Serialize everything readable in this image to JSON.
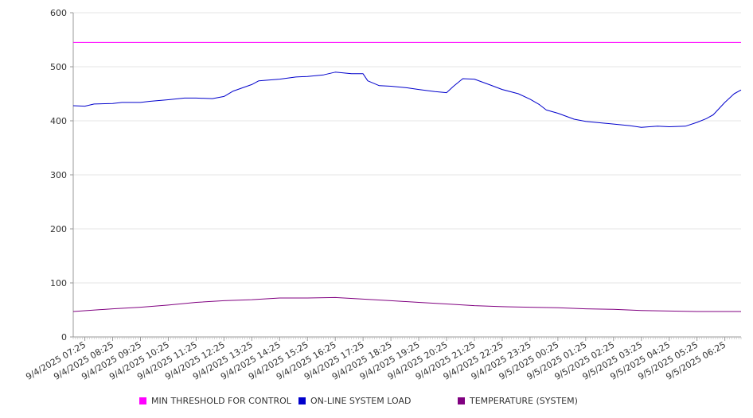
{
  "chart_data": {
    "type": "line",
    "title": "",
    "xlabel": "",
    "ylabel": "",
    "ylim": [
      0,
      600
    ],
    "yticks": [
      0,
      100,
      200,
      300,
      400,
      500,
      600
    ],
    "grid": true,
    "legend_position": "bottom",
    "x_tick_labels": [
      "9/4/2025 07:25",
      "9/4/2025 08:25",
      "9/4/2025 09:25",
      "9/4/2025 10:25",
      "9/4/2025 11:25",
      "9/4/2025 12:25",
      "9/4/2025 13:25",
      "9/4/2025 14:25",
      "9/4/2025 15:25",
      "9/4/2025 16:25",
      "9/4/2025 17:25",
      "9/4/2025 18:25",
      "9/4/2025 19:25",
      "9/4/2025 20:25",
      "9/4/2025 21:25",
      "9/4/2025 22:25",
      "9/4/2025 23:25",
      "9/5/2025 00:25",
      "9/5/2025 01:25",
      "9/5/2025 02:25",
      "9/5/2025 03:25",
      "9/5/2025 04:25",
      "9/5/2025 05:25",
      "9/5/2025 06:25"
    ],
    "x_range": [
      "9/4/2025 07:00",
      "9/5/2025 07:00"
    ],
    "series": [
      {
        "name": "MIN THRESHOLD FOR CONTROL",
        "color": "#ff00ff",
        "points": [
          [
            "9/4/2025 07:00",
            545
          ],
          [
            "9/5/2025 07:00",
            545
          ]
        ]
      },
      {
        "name": "ON-LINE SYSTEM LOAD",
        "color": "#0000cc",
        "points": [
          [
            "9/4/2025 07:00",
            428
          ],
          [
            "9/4/2025 07:25",
            427
          ],
          [
            "9/4/2025 07:45",
            431
          ],
          [
            "9/4/2025 08:25",
            432
          ],
          [
            "9/4/2025 08:45",
            434
          ],
          [
            "9/4/2025 09:25",
            434
          ],
          [
            "9/4/2025 09:45",
            436
          ],
          [
            "9/4/2025 10:25",
            439
          ],
          [
            "9/4/2025 11:00",
            442
          ],
          [
            "9/4/2025 11:25",
            442
          ],
          [
            "9/4/2025 12:00",
            441
          ],
          [
            "9/4/2025 12:25",
            445
          ],
          [
            "9/4/2025 12:45",
            455
          ],
          [
            "9/4/2025 13:25",
            467
          ],
          [
            "9/4/2025 13:40",
            474
          ],
          [
            "9/4/2025 14:25",
            477
          ],
          [
            "9/4/2025 15:00",
            481
          ],
          [
            "9/4/2025 15:25",
            482
          ],
          [
            "9/4/2025 16:00",
            485
          ],
          [
            "9/4/2025 16:25",
            490
          ],
          [
            "9/4/2025 17:00",
            487
          ],
          [
            "9/4/2025 17:25",
            487
          ],
          [
            "9/4/2025 17:35",
            474
          ],
          [
            "9/4/2025 18:00",
            465
          ],
          [
            "9/4/2025 18:25",
            464
          ],
          [
            "9/4/2025 19:00",
            461
          ],
          [
            "9/4/2025 19:25",
            458
          ],
          [
            "9/4/2025 20:00",
            454
          ],
          [
            "9/4/2025 20:25",
            452
          ],
          [
            "9/4/2025 20:40",
            464
          ],
          [
            "9/4/2025 21:00",
            478
          ],
          [
            "9/4/2025 21:25",
            477
          ],
          [
            "9/4/2025 22:00",
            466
          ],
          [
            "9/4/2025 22:25",
            458
          ],
          [
            "9/4/2025 23:00",
            450
          ],
          [
            "9/4/2025 23:25",
            440
          ],
          [
            "9/4/2025 23:45",
            430
          ],
          [
            "9/5/2025 00:00",
            420
          ],
          [
            "9/5/2025 00:25",
            414
          ],
          [
            "9/5/2025 01:00",
            403
          ],
          [
            "9/5/2025 01:25",
            399
          ],
          [
            "9/5/2025 02:00",
            396
          ],
          [
            "9/5/2025 02:25",
            394
          ],
          [
            "9/5/2025 03:00",
            391
          ],
          [
            "9/5/2025 03:25",
            388
          ],
          [
            "9/5/2025 04:00",
            390
          ],
          [
            "9/5/2025 04:25",
            389
          ],
          [
            "9/5/2025 05:00",
            390
          ],
          [
            "9/5/2025 05:25",
            397
          ],
          [
            "9/5/2025 05:45",
            404
          ],
          [
            "9/5/2025 06:00",
            411
          ],
          [
            "9/5/2025 06:25",
            434
          ],
          [
            "9/5/2025 06:45",
            450
          ],
          [
            "9/5/2025 07:00",
            457
          ]
        ]
      },
      {
        "name": "TEMPERATURE (SYSTEM)",
        "color": "#800080",
        "points": [
          [
            "9/4/2025 07:00",
            47
          ],
          [
            "9/4/2025 08:25",
            52
          ],
          [
            "9/4/2025 09:25",
            55
          ],
          [
            "9/4/2025 10:25",
            59
          ],
          [
            "9/4/2025 11:25",
            64
          ],
          [
            "9/4/2025 12:25",
            67
          ],
          [
            "9/4/2025 13:25",
            69
          ],
          [
            "9/4/2025 14:25",
            72
          ],
          [
            "9/4/2025 15:25",
            72
          ],
          [
            "9/4/2025 16:25",
            73
          ],
          [
            "9/4/2025 17:25",
            70
          ],
          [
            "9/4/2025 18:25",
            67
          ],
          [
            "9/4/2025 19:25",
            64
          ],
          [
            "9/4/2025 20:25",
            61
          ],
          [
            "9/4/2025 21:25",
            58
          ],
          [
            "9/4/2025 22:25",
            56
          ],
          [
            "9/4/2025 23:25",
            55
          ],
          [
            "9/5/2025 00:25",
            54
          ],
          [
            "9/5/2025 01:25",
            52
          ],
          [
            "9/5/2025 02:25",
            51
          ],
          [
            "9/5/2025 03:25",
            49
          ],
          [
            "9/5/2025 04:25",
            48
          ],
          [
            "9/5/2025 05:25",
            47
          ],
          [
            "9/5/2025 06:25",
            47
          ],
          [
            "9/5/2025 07:00",
            47
          ]
        ]
      }
    ]
  }
}
